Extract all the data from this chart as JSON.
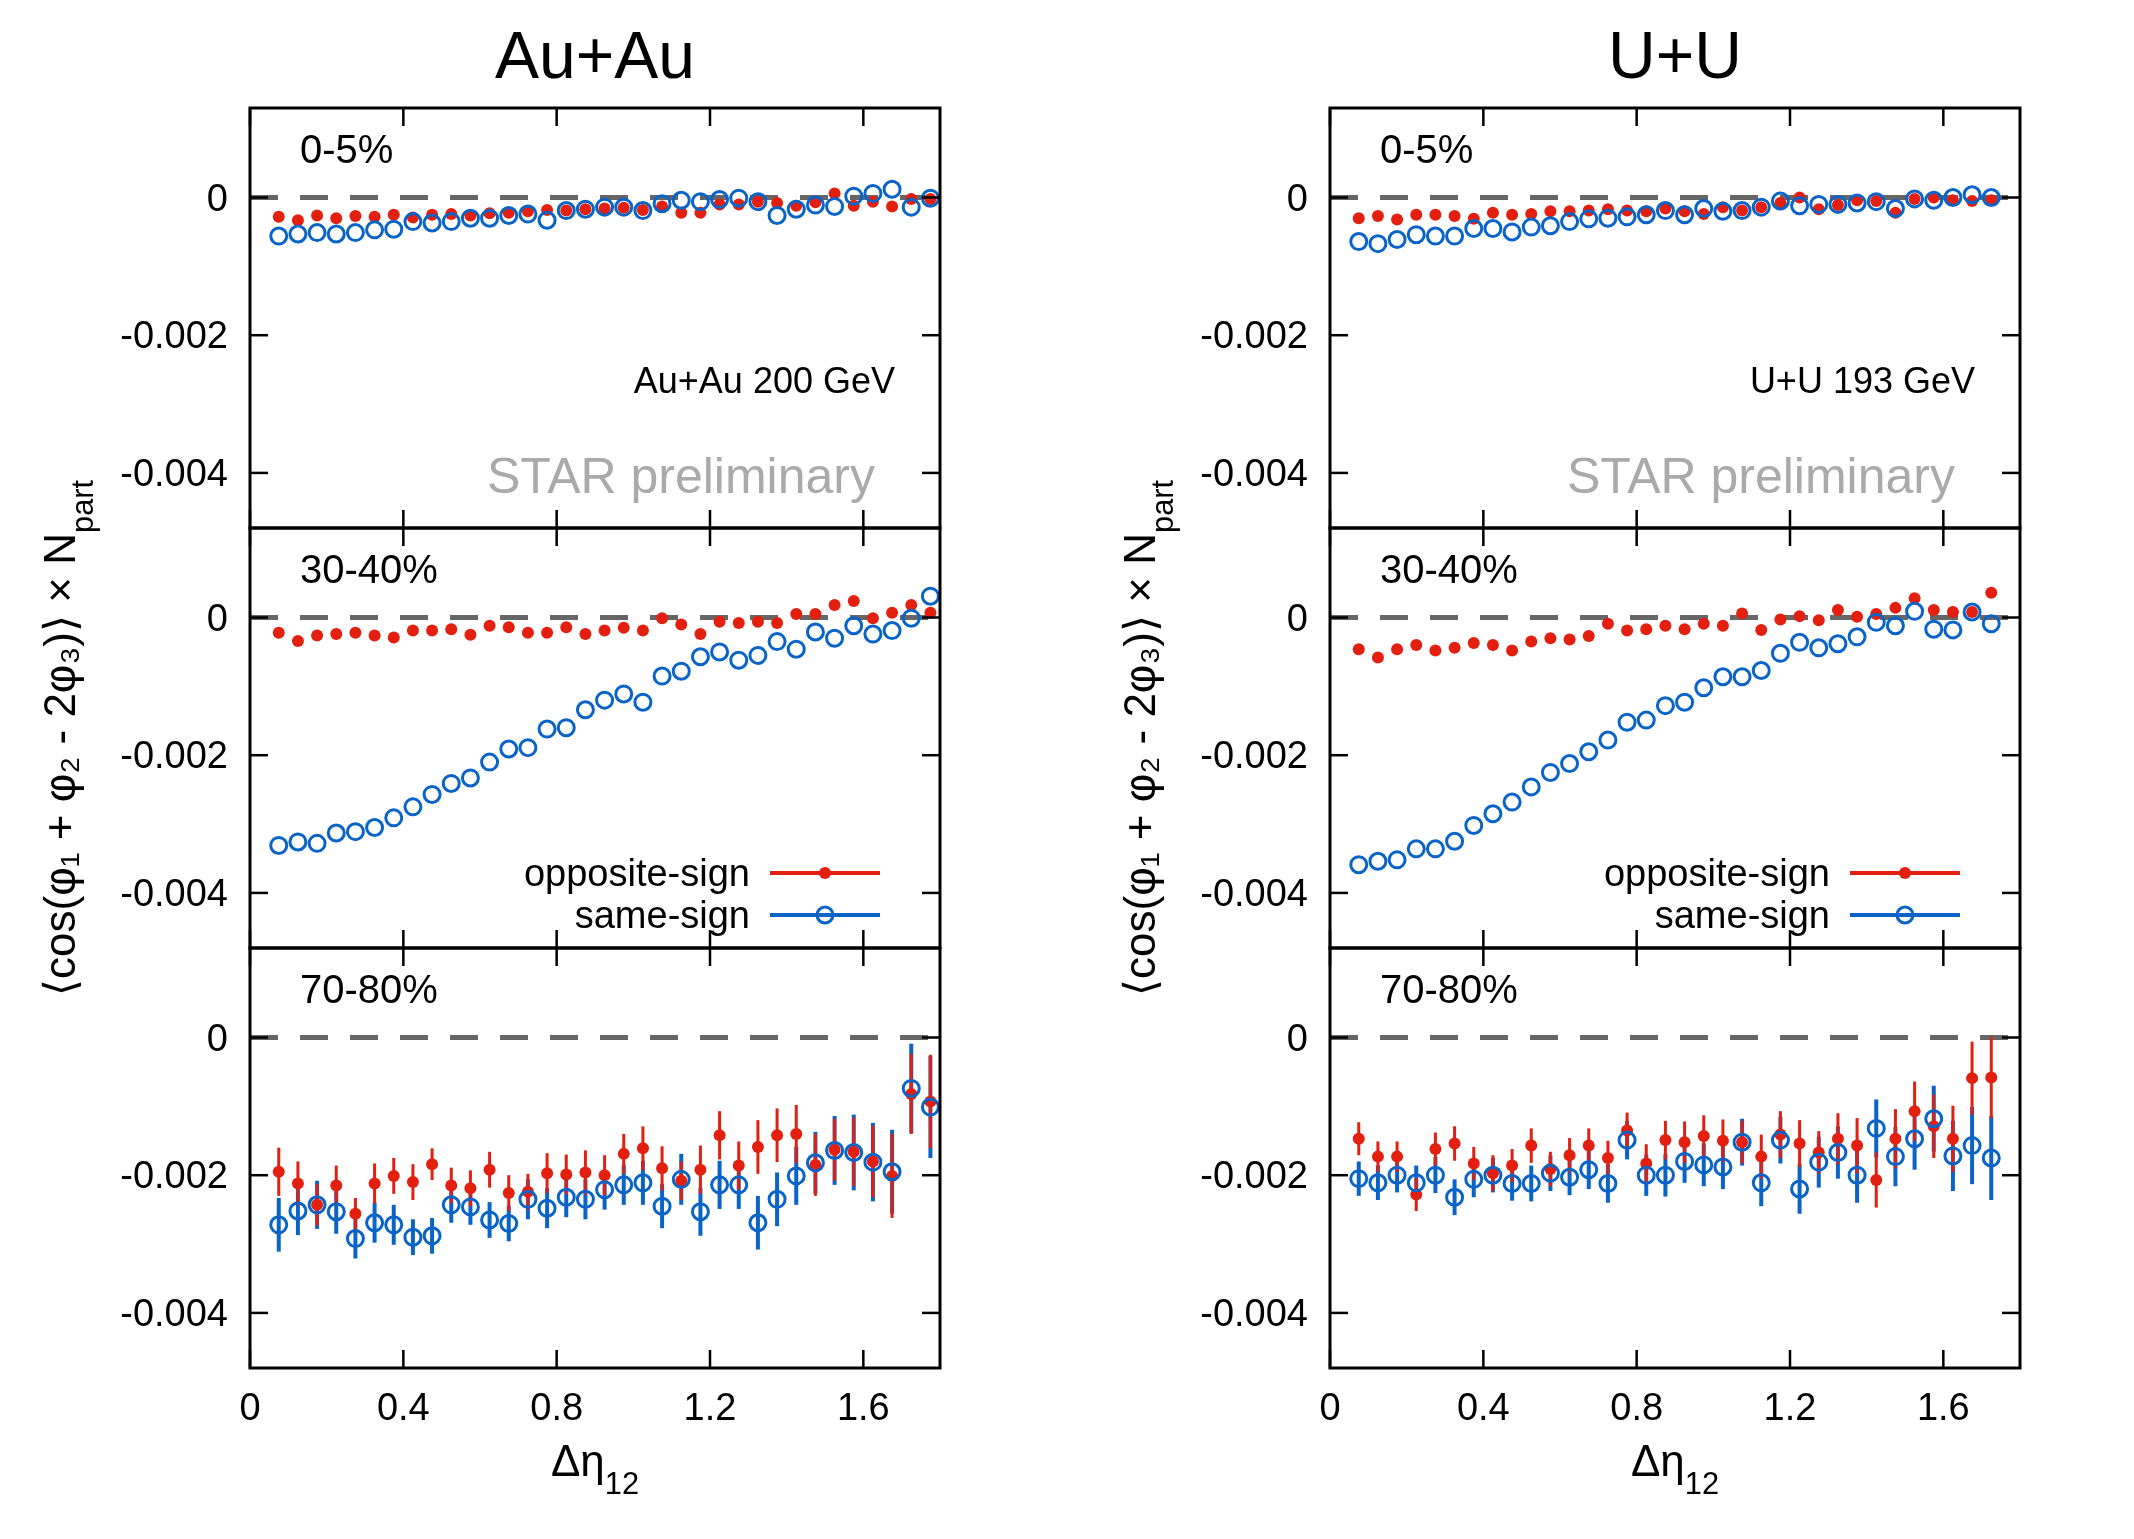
{
  "chart_data": [
    {
      "type": "scatter",
      "title": "Au+Au",
      "annotations": [
        "0-5%",
        "Au+Au 200 GeV",
        "STAR preliminary"
      ],
      "x": [
        0.075,
        0.125,
        0.175,
        0.225,
        0.275,
        0.325,
        0.375,
        0.425,
        0.475,
        0.525,
        0.575,
        0.625,
        0.675,
        0.725,
        0.775,
        0.825,
        0.875,
        0.925,
        0.975,
        1.025,
        1.075,
        1.125,
        1.175,
        1.225,
        1.275,
        1.325,
        1.375,
        1.425,
        1.475,
        1.525,
        1.575,
        1.625,
        1.675,
        1.725,
        1.775
      ],
      "xlim": [
        0,
        1.8
      ],
      "xticks": [
        0,
        0.4,
        0.8,
        1.2,
        1.6
      ],
      "ylim": [
        -0.0048,
        0.0013
      ],
      "yticks": [
        0,
        -0.002,
        -0.004
      ],
      "tick_labels": "y",
      "marker": "circle",
      "legend": false,
      "ref_lines": [
        {
          "axis": "y",
          "value": 0,
          "color": "#666666",
          "line_style": "dashed"
        }
      ],
      "series": [
        {
          "color": "#e3200f",
          "values": [
            -0.00028,
            -0.00033,
            -0.00026,
            -0.0003,
            -0.00027,
            -0.00028,
            -0.00025,
            -0.00029,
            -0.00025,
            -0.00024,
            -0.00026,
            -0.00023,
            -0.00022,
            -0.0002,
            -0.00018,
            -0.00019,
            -0.00017,
            -0.00016,
            -0.00015,
            -0.00018,
            -0.00013,
            -0.00022,
            -0.00022,
            -0.0001,
            -0.0001,
            -6e-05,
            -8e-05,
            -0.00012,
            -7e-05,
            6e-05,
            -0.00012,
            -6e-05,
            -0.00013,
            -2e-05,
            -2e-05
          ]
        },
        {
          "color": "#0a64c8",
          "values": [
            -0.00056,
            -0.00053,
            -0.00051,
            -0.00053,
            -0.00051,
            -0.00047,
            -0.00046,
            -0.00035,
            -0.00037,
            -0.00035,
            -0.0003,
            -0.0003,
            -0.00026,
            -0.00024,
            -0.00033,
            -0.00019,
            -0.00017,
            -0.00014,
            -0.00014,
            -0.00019,
            -9e-05,
            -4e-05,
            -6e-05,
            -3e-05,
            -1e-05,
            -6e-05,
            -0.00026,
            -0.00017,
            -0.00011,
            -0.00013,
            2e-05,
            6e-05,
            0.00012,
            -0.00014,
            -1e-05
          ]
        }
      ]
    },
    {
      "type": "scatter",
      "title": "U+U",
      "annotations": [
        "0-5%",
        "U+U 193 GeV",
        "STAR preliminary"
      ],
      "x": [
        0.075,
        0.125,
        0.175,
        0.225,
        0.275,
        0.325,
        0.375,
        0.425,
        0.475,
        0.525,
        0.575,
        0.625,
        0.675,
        0.725,
        0.775,
        0.825,
        0.875,
        0.925,
        0.975,
        1.025,
        1.075,
        1.125,
        1.175,
        1.225,
        1.275,
        1.325,
        1.375,
        1.425,
        1.475,
        1.525,
        1.575,
        1.625,
        1.675,
        1.725
      ],
      "xlim": [
        0,
        1.8
      ],
      "xticks": [
        0,
        0.4,
        0.8,
        1.2,
        1.6
      ],
      "ylim": [
        -0.0048,
        0.0013
      ],
      "yticks": [
        0,
        -0.002,
        -0.004
      ],
      "tick_labels": "y",
      "marker": "circle",
      "legend": false,
      "ref_lines": [
        {
          "axis": "y",
          "value": 0,
          "color": "#666666",
          "line_style": "dashed"
        }
      ],
      "series": [
        {
          "color": "#e3200f",
          "values": [
            -0.0003,
            -0.00027,
            -0.00032,
            -0.00025,
            -0.00025,
            -0.00027,
            -0.00031,
            -0.00022,
            -0.00025,
            -0.00024,
            -0.0002,
            -0.0002,
            -0.00019,
            -0.00017,
            -0.00019,
            -0.0002,
            -0.00016,
            -0.0002,
            -0.00024,
            -0.00014,
            -0.00019,
            -0.00014,
            -8e-05,
            0,
            -0.00017,
            -0.00011,
            -4e-05,
            -5e-05,
            -0.00022,
            -2e-05,
            0,
            -4e-05,
            -5e-05,
            -4e-05
          ]
        },
        {
          "color": "#0a64c8",
          "values": [
            -0.00064,
            -0.00067,
            -0.00061,
            -0.00054,
            -0.00056,
            -0.00056,
            -0.00045,
            -0.00045,
            -0.0005,
            -0.00043,
            -0.00041,
            -0.00035,
            -0.00031,
            -0.0003,
            -0.00028,
            -0.00025,
            -0.00019,
            -0.00025,
            -0.00016,
            -0.0002,
            -0.00019,
            -0.00014,
            -5e-05,
            -0.00012,
            -0.0001,
            -0.0001,
            -8e-05,
            -6e-05,
            -0.00016,
            -2e-05,
            -4e-05,
            0,
            4e-05,
            0
          ]
        }
      ]
    },
    {
      "type": "scatter",
      "ylabel": "⟨cos(φ₁ + φ₂ - 2φ₃)⟩ × N$_{part}$",
      "annotations": [
        "30-40%"
      ],
      "x": [
        0.075,
        0.125,
        0.175,
        0.225,
        0.275,
        0.325,
        0.375,
        0.425,
        0.475,
        0.525,
        0.575,
        0.625,
        0.675,
        0.725,
        0.775,
        0.825,
        0.875,
        0.925,
        0.975,
        1.025,
        1.075,
        1.125,
        1.175,
        1.225,
        1.275,
        1.325,
        1.375,
        1.425,
        1.475,
        1.525,
        1.575,
        1.625,
        1.675,
        1.725,
        1.775
      ],
      "xlim": [
        0,
        1.8
      ],
      "xticks": [
        0,
        0.4,
        0.8,
        1.2,
        1.6
      ],
      "ylim": [
        -0.0048,
        0.0013
      ],
      "yticks": [
        0,
        -0.002,
        -0.004
      ],
      "tick_labels": "y",
      "marker": "circle",
      "legend": "bottom right",
      "ref_lines": [
        {
          "axis": "y",
          "value": 0,
          "color": "#666666",
          "line_style": "dashed"
        }
      ],
      "series": [
        {
          "name": "opposite-sign",
          "color": "#e3200f",
          "values": [
            -0.00022,
            -0.00034,
            -0.00026,
            -0.00024,
            -0.00022,
            -0.00026,
            -0.00029,
            -0.00019,
            -0.00019,
            -0.00017,
            -0.00025,
            -0.00012,
            -0.00014,
            -0.00022,
            -0.00022,
            -0.00014,
            -0.00024,
            -0.00019,
            -0.00015,
            -0.00019,
            -1e-05,
            -0.0001,
            -0.00024,
            -6e-05,
            -8e-05,
            -6e-05,
            -8e-05,
            5e-05,
            5e-05,
            0.00018,
            0.00024,
            -1e-05,
            7e-05,
            0.00018,
            7e-05
          ]
        },
        {
          "name": "same-sign",
          "color": "#0a64c8",
          "values": [
            -0.00331,
            -0.00326,
            -0.00328,
            -0.00313,
            -0.00311,
            -0.00305,
            -0.00291,
            -0.00275,
            -0.00257,
            -0.00241,
            -0.00233,
            -0.0021,
            -0.00191,
            -0.00189,
            -0.00162,
            -0.0016,
            -0.00134,
            -0.0012,
            -0.00111,
            -0.00123,
            -0.00085,
            -0.00078,
            -0.00057,
            -0.0005,
            -0.00062,
            -0.00055,
            -0.00035,
            -0.00046,
            -0.00021,
            -0.0003,
            -0.00012,
            -0.00024,
            -0.00019,
            -1e-05,
            0.00031
          ]
        }
      ]
    },
    {
      "type": "scatter",
      "ylabel": "⟨cos(φ₁ + φ₂ - 2φ₃)⟩ × N$_{part}$",
      "annotations": [
        "30-40%"
      ],
      "x": [
        0.075,
        0.125,
        0.175,
        0.225,
        0.275,
        0.325,
        0.375,
        0.425,
        0.475,
        0.525,
        0.575,
        0.625,
        0.675,
        0.725,
        0.775,
        0.825,
        0.875,
        0.925,
        0.975,
        1.025,
        1.075,
        1.125,
        1.175,
        1.225,
        1.275,
        1.325,
        1.375,
        1.425,
        1.475,
        1.525,
        1.575,
        1.625,
        1.675,
        1.725
      ],
      "xlim": [
        0,
        1.8
      ],
      "xticks": [
        0,
        0.4,
        0.8,
        1.2,
        1.6
      ],
      "ylim": [
        -0.0048,
        0.0013
      ],
      "yticks": [
        0,
        -0.002,
        -0.004
      ],
      "tick_labels": "y",
      "marker": "circle",
      "legend": "bottom right",
      "ref_lines": [
        {
          "axis": "y",
          "value": 0,
          "color": "#666666",
          "line_style": "dashed"
        }
      ],
      "series": [
        {
          "name": "opposite-sign",
          "color": "#e3200f",
          "values": [
            -0.00046,
            -0.00058,
            -0.00046,
            -0.0004,
            -0.00048,
            -0.00044,
            -0.00037,
            -0.0004,
            -0.00048,
            -0.00035,
            -0.0003,
            -0.00032,
            -0.00027,
            -9e-05,
            -0.00019,
            -0.00017,
            -0.00012,
            -0.00017,
            -9e-05,
            -0.00012,
            6e-05,
            -0.00018,
            -3e-05,
            2e-05,
            -4e-05,
            0.00011,
            1e-05,
            5e-05,
            0.00014,
            0.00028,
            0.00011,
            8e-05,
            8e-05,
            0.00036
          ]
        },
        {
          "name": "same-sign",
          "color": "#0a64c8",
          "values": [
            -0.00359,
            -0.00354,
            -0.00352,
            -0.00336,
            -0.00336,
            -0.00325,
            -0.00302,
            -0.00285,
            -0.00268,
            -0.00246,
            -0.00225,
            -0.00212,
            -0.00195,
            -0.00178,
            -0.00152,
            -0.00149,
            -0.00128,
            -0.00123,
            -0.00102,
            -0.00086,
            -0.00086,
            -0.00077,
            -0.00052,
            -0.00036,
            -0.00044,
            -0.00038,
            -0.00028,
            -7e-05,
            -0.00012,
            9e-05,
            -0.00017,
            -0.00018,
            8e-05,
            -9e-05
          ]
        }
      ]
    },
    {
      "type": "scatter",
      "xlabel": "Δη$_{12}$",
      "annotations": [
        "70-80%"
      ],
      "x": [
        0.075,
        0.125,
        0.175,
        0.225,
        0.275,
        0.325,
        0.375,
        0.425,
        0.475,
        0.525,
        0.575,
        0.625,
        0.675,
        0.725,
        0.775,
        0.825,
        0.875,
        0.925,
        0.975,
        1.025,
        1.075,
        1.125,
        1.175,
        1.225,
        1.275,
        1.325,
        1.375,
        1.425,
        1.475,
        1.525,
        1.575,
        1.625,
        1.675,
        1.725,
        1.775
      ],
      "xlim": [
        0,
        1.8
      ],
      "xticks": [
        0,
        0.4,
        0.8,
        1.2,
        1.6
      ],
      "ylim": [
        -0.0048,
        0.0013
      ],
      "yticks": [
        0,
        -0.002,
        -0.004
      ],
      "marker": "circle",
      "legend": false,
      "ref_lines": [
        {
          "axis": "y",
          "value": 0,
          "color": "#666666",
          "line_style": "dashed"
        }
      ],
      "series": [
        {
          "color": "#e3200f",
          "values": [
            -0.00195,
            -0.00212,
            -0.00243,
            -0.00215,
            -0.00256,
            -0.00212,
            -0.00201,
            -0.0021,
            -0.00184,
            -0.00215,
            -0.00219,
            -0.00192,
            -0.00226,
            -0.00224,
            -0.00197,
            -0.00199,
            -0.00196,
            -0.002,
            -0.00169,
            -0.00161,
            -0.0019,
            -0.00208,
            -0.00192,
            -0.00142,
            -0.00186,
            -0.00159,
            -0.00142,
            -0.0014,
            -0.00185,
            -0.00163,
            -0.00166,
            -0.0018,
            -0.00201,
            -0.00082,
            -0.00093
          ],
          "errors": [
            0.00035,
            0.00032,
            0.0003,
            0.00029,
            0.00023,
            0.00029,
            0.00026,
            0.00026,
            0.00023,
            0.00026,
            0.00026,
            0.00026,
            0.00026,
            0.00026,
            0.00029,
            0.00029,
            0.00032,
            0.00029,
            0.00029,
            0.00032,
            0.00032,
            0.00028,
            0.00035,
            0.00035,
            0.00035,
            0.00039,
            0.00039,
            0.00042,
            0.00045,
            0.00045,
            0.0005,
            0.00052,
            0.00061,
            0.00058,
            0.00068
          ]
        },
        {
          "color": "#0a64c8",
          "values": [
            -0.00272,
            -0.00252,
            -0.00243,
            -0.00253,
            -0.00292,
            -0.00269,
            -0.00272,
            -0.0029,
            -0.00288,
            -0.00243,
            -0.00246,
            -0.00265,
            -0.0027,
            -0.00235,
            -0.00248,
            -0.00232,
            -0.00235,
            -0.00221,
            -0.00214,
            -0.00211,
            -0.00245,
            -0.00206,
            -0.00253,
            -0.00214,
            -0.00214,
            -0.00269,
            -0.00235,
            -0.00201,
            -0.00182,
            -0.00164,
            -0.00167,
            -0.00181,
            -0.00195,
            -0.00074,
            -0.00101
          ],
          "errors": [
            0.00039,
            0.00035,
            0.00035,
            0.00032,
            0.00029,
            0.00029,
            0.00029,
            0.00026,
            0.00026,
            0.00026,
            0.00026,
            0.00026,
            0.00026,
            0.00029,
            0.00029,
            0.00029,
            0.00029,
            0.00029,
            0.00029,
            0.00032,
            0.00032,
            0.00037,
            0.00035,
            0.00035,
            0.00035,
            0.00039,
            0.00039,
            0.00042,
            0.00045,
            0.0005,
            0.00055,
            0.00057,
            0.00061,
            0.00065,
            0.00074
          ]
        }
      ]
    },
    {
      "type": "scatter",
      "xlabel": "Δη$_{12}$",
      "annotations": [
        "70-80%"
      ],
      "x": [
        0.075,
        0.125,
        0.175,
        0.225,
        0.275,
        0.325,
        0.375,
        0.425,
        0.475,
        0.525,
        0.575,
        0.625,
        0.675,
        0.725,
        0.775,
        0.825,
        0.875,
        0.925,
        0.975,
        1.025,
        1.075,
        1.125,
        1.175,
        1.225,
        1.275,
        1.325,
        1.375,
        1.425,
        1.475,
        1.525,
        1.575,
        1.625,
        1.675,
        1.725
      ],
      "xlim": [
        0,
        1.8
      ],
      "xticks": [
        0,
        0.4,
        0.8,
        1.2,
        1.6
      ],
      "ylim": [
        -0.0048,
        0.0013
      ],
      "yticks": [
        0,
        -0.002,
        -0.004
      ],
      "marker": "circle",
      "legend": false,
      "ref_lines": [
        {
          "axis": "y",
          "value": 0,
          "color": "#666666",
          "line_style": "dashed"
        }
      ],
      "series": [
        {
          "color": "#e3200f",
          "values": [
            -0.00147,
            -0.00173,
            -0.00173,
            -0.00228,
            -0.00162,
            -0.00154,
            -0.00183,
            -0.00197,
            -0.00186,
            -0.00157,
            -0.00191,
            -0.00171,
            -0.00157,
            -0.00175,
            -0.00135,
            -0.00183,
            -0.00149,
            -0.00152,
            -0.00143,
            -0.0015,
            -0.00152,
            -0.00173,
            -0.00141,
            -0.00154,
            -0.00167,
            -0.00147,
            -0.00157,
            -0.00207,
            -0.00147,
            -0.00107,
            -0.00129,
            -0.00147,
            -0.00059,
            -0.00058
          ],
          "errors": [
            0.00024,
            0.00022,
            0.00022,
            0.00024,
            0.00024,
            0.00025,
            0.00024,
            0.00026,
            0.00024,
            0.00025,
            0.00025,
            0.00025,
            0.00025,
            0.00025,
            0.00026,
            0.00028,
            0.00028,
            0.0003,
            0.0003,
            0.00031,
            0.00031,
            0.00032,
            0.00034,
            0.00034,
            0.00031,
            0.00037,
            0.0004,
            0.0004,
            0.00043,
            0.00043,
            0.00046,
            0.00048,
            0.00053,
            0.00059
          ]
        },
        {
          "color": "#0a64c8",
          "values": [
            -0.00205,
            -0.00211,
            -0.002,
            -0.00211,
            -0.002,
            -0.00232,
            -0.00206,
            -0.002,
            -0.00212,
            -0.00212,
            -0.00197,
            -0.00203,
            -0.00192,
            -0.00212,
            -0.00149,
            -0.002,
            -0.002,
            -0.0018,
            -0.00185,
            -0.00188,
            -0.00152,
            -0.00211,
            -0.00149,
            -0.0022,
            -0.00181,
            -0.00167,
            -0.002,
            -0.00132,
            -0.00173,
            -0.00147,
            -0.00118,
            -0.00172,
            -0.00157,
            -0.00175
          ],
          "errors": [
            0.00025,
            0.00025,
            0.00025,
            0.00025,
            0.00026,
            0.00026,
            0.00026,
            0.00025,
            0.00025,
            0.00026,
            0.00026,
            0.00026,
            0.00028,
            0.00028,
            0.00028,
            0.0003,
            0.00031,
            0.00031,
            0.00031,
            0.00032,
            0.00034,
            0.00034,
            0.00034,
            0.00036,
            0.00037,
            0.00038,
            0.0004,
            0.00042,
            0.00043,
            0.00045,
            0.00048,
            0.00051,
            0.00056,
            0.00061
          ]
        }
      ]
    }
  ]
}
